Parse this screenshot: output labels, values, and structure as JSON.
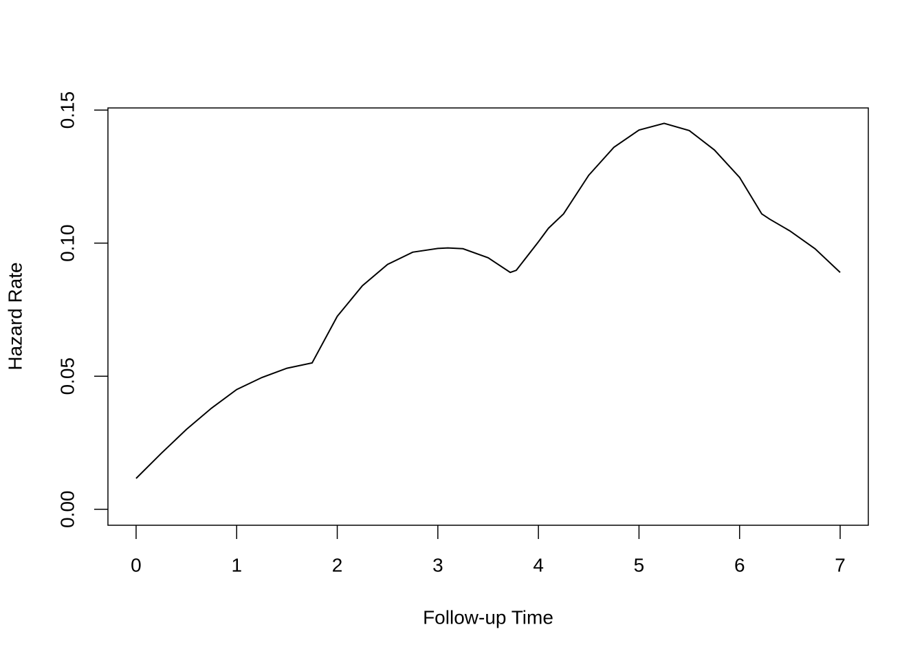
{
  "chart_data": {
    "type": "line",
    "x_label": "Follow-up Time",
    "y_label": "Hazard Rate",
    "x": [
      0,
      0.25,
      0.5,
      0.75,
      1,
      1.25,
      1.5,
      1.75,
      2,
      2.25,
      2.5,
      2.75,
      3,
      3.1,
      3.25,
      3.5,
      3.72,
      3.78,
      4,
      4.1,
      4.25,
      4.5,
      4.75,
      5,
      5.25,
      5.5,
      5.75,
      6,
      6.22,
      6.3,
      6.5,
      6.75,
      7
    ],
    "series": [
      {
        "color": "#000000",
        "values": [
          0.0116,
          0.021,
          0.03,
          0.038,
          0.045,
          0.0495,
          0.053,
          0.055,
          0.0725,
          0.084,
          0.092,
          0.0966,
          0.098,
          0.0982,
          0.0979,
          0.0945,
          0.089,
          0.0898,
          0.1005,
          0.1056,
          0.111,
          0.1255,
          0.136,
          0.1425,
          0.145,
          0.1423,
          0.135,
          0.1247,
          0.111,
          0.109,
          0.1046,
          0.0979,
          0.089
        ]
      }
    ],
    "xlim": [
      -0.28,
      7.28
    ],
    "ylim": [
      -0.006,
      0.1508
    ],
    "xticks": [
      0,
      1,
      2,
      3,
      4,
      5,
      6,
      7
    ],
    "yticks": [
      {
        "value": 0,
        "label": "0.00"
      },
      {
        "value": 0.05,
        "label": "0.05"
      },
      {
        "value": 0.1,
        "label": "0.10"
      },
      {
        "value": 0.15,
        "label": "0.15"
      }
    ]
  }
}
